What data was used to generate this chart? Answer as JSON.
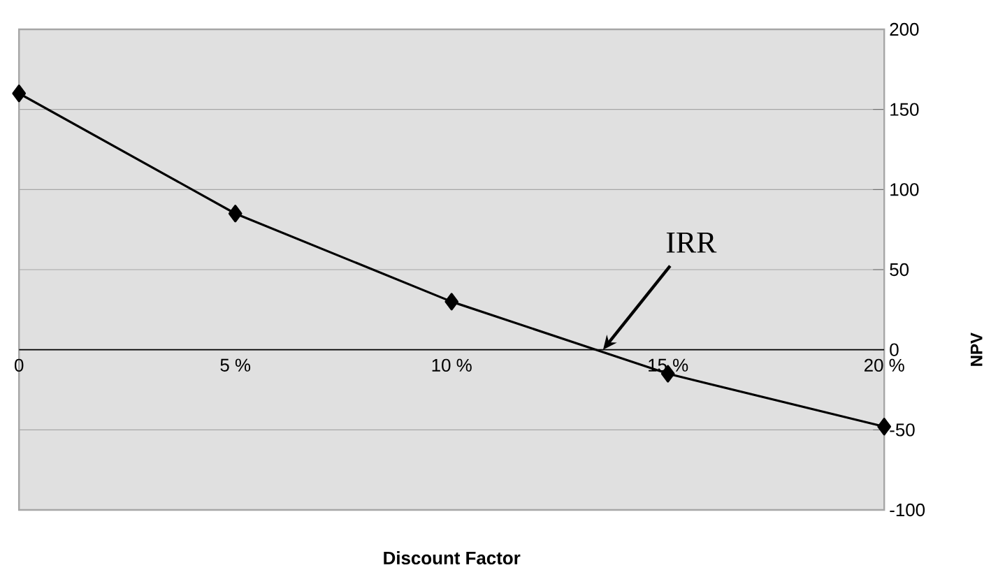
{
  "chart_data": {
    "type": "line",
    "xlabel": "Discount Factor",
    "ylabel": "NPV",
    "x": [
      0,
      5,
      10,
      15,
      20
    ],
    "values": [
      160,
      85,
      30,
      -15,
      -48
    ],
    "color": "#000000",
    "marker": "diamond",
    "line_style": "solid",
    "xlim": [
      0,
      20
    ],
    "xticks": [
      0,
      {
        "value": 5,
        "label": "5 %"
      },
      {
        "value": 10,
        "label": "10 %"
      },
      {
        "value": 15,
        "label": "15 %"
      },
      {
        "value": 20,
        "label": "20 %"
      }
    ],
    "ylim": [
      -100,
      200
    ],
    "yticks": [
      -100,
      -50,
      0,
      50,
      100,
      150,
      200
    ],
    "grid": "y",
    "annotations": [
      {
        "text": "IRR",
        "x": 13.5,
        "y": 0
      }
    ]
  }
}
